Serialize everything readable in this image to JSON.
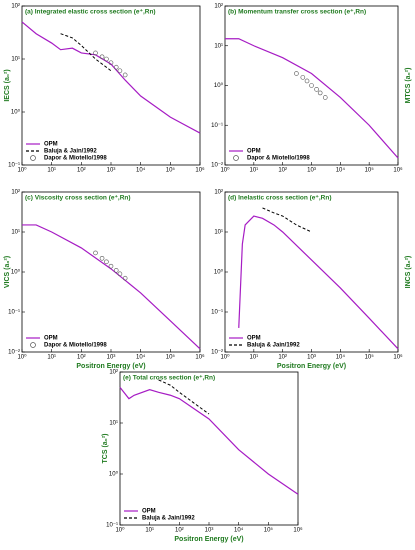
{
  "chart_data": [
    {
      "type": "line",
      "title": "(a) Integrated elastic cross section (e⁺,Rn)",
      "ylabel": "IECS (a₀²)",
      "ylabel_side": "left",
      "log_x": true,
      "log_y": true,
      "legend": "lower left",
      "xlim": [
        1,
        1000000
      ],
      "xticks": [
        {
          "value": 1,
          "label": "10⁰"
        },
        {
          "value": 10,
          "label": "10¹"
        },
        {
          "value": 100,
          "label": "10²"
        },
        {
          "value": 1000,
          "label": "10³"
        },
        {
          "value": 10000,
          "label": "10⁴"
        },
        {
          "value": 100000,
          "label": "10⁵"
        },
        {
          "value": 1000000,
          "label": "10⁶"
        }
      ],
      "ylim": [
        0.1,
        100
      ],
      "yticks": [
        {
          "value": 0.1,
          "label": "10⁻¹"
        },
        {
          "value": 1,
          "label": "10⁰"
        },
        {
          "value": 10,
          "label": "10¹"
        },
        {
          "value": 100,
          "label": "10²"
        }
      ],
      "series": [
        {
          "name": "OPM",
          "style": "line",
          "color": "#a61cc4",
          "x": [
            1,
            3,
            10,
            20,
            50,
            100,
            300,
            1000,
            3000,
            10000,
            100000,
            1000000
          ],
          "values": [
            50,
            30,
            20,
            15,
            16,
            13,
            12,
            8,
            4,
            2,
            0.8,
            0.4
          ]
        },
        {
          "name": "Baluja & Jain/1992",
          "style": "dashed",
          "color": "#000000",
          "x": [
            20,
            50,
            100,
            300,
            1000
          ],
          "values": [
            30,
            25,
            18,
            10,
            6
          ]
        },
        {
          "name": "Dapor & Miotello/1998",
          "style": "markers",
          "color": "#555555",
          "x": [
            300,
            500,
            700,
            1000,
            1500,
            2000,
            3000
          ],
          "values": [
            13,
            11,
            10,
            8.5,
            7,
            6,
            5
          ]
        }
      ]
    },
    {
      "type": "line",
      "title": "(b) Momentum transfer cross section (e⁺,Rn)",
      "ylabel": "MTCS (a₀²)",
      "ylabel_side": "right",
      "log_x": true,
      "log_y": true,
      "legend": "lower left",
      "xlim": [
        1,
        1000000
      ],
      "xticks": [
        {
          "value": 1,
          "label": "10⁰"
        },
        {
          "value": 10,
          "label": "10¹"
        },
        {
          "value": 100,
          "label": "10²"
        },
        {
          "value": 1000,
          "label": "10³"
        },
        {
          "value": 10000,
          "label": "10⁴"
        },
        {
          "value": 100000,
          "label": "10⁵"
        },
        {
          "value": 1000000,
          "label": "10⁶"
        }
      ],
      "ylim": [
        0.01,
        100
      ],
      "yticks": [
        {
          "value": 0.01,
          "label": "10⁻²"
        },
        {
          "value": 0.1,
          "label": "10⁻¹"
        },
        {
          "value": 1,
          "label": "10⁰"
        },
        {
          "value": 10,
          "label": "10¹"
        },
        {
          "value": 100,
          "label": "10²"
        }
      ],
      "series": [
        {
          "name": "OPM",
          "style": "line",
          "color": "#a61cc4",
          "x": [
            1,
            3,
            10,
            100,
            1000,
            10000,
            100000,
            1000000
          ],
          "values": [
            15,
            15,
            10,
            5,
            2,
            0.5,
            0.1,
            0.015
          ]
        },
        {
          "name": "Dapor & Miotello/1998",
          "style": "markers",
          "color": "#555555",
          "x": [
            300,
            500,
            700,
            1000,
            1500,
            2000,
            3000
          ],
          "values": [
            2.0,
            1.6,
            1.3,
            1.0,
            0.8,
            0.65,
            0.5
          ]
        }
      ]
    },
    {
      "type": "line",
      "title": "(c) Viscosity cross section (e⁺,Rn)",
      "ylabel": "VICS (a₀²)",
      "ylabel_side": "left",
      "xlabel": "Positron Energy (eV)",
      "log_x": true,
      "log_y": true,
      "legend": "lower left",
      "xlim": [
        1,
        1000000
      ],
      "xticks": [
        {
          "value": 1,
          "label": "10⁰"
        },
        {
          "value": 10,
          "label": "10¹"
        },
        {
          "value": 100,
          "label": "10²"
        },
        {
          "value": 1000,
          "label": "10³"
        },
        {
          "value": 10000,
          "label": "10⁴"
        },
        {
          "value": 100000,
          "label": "10⁵"
        },
        {
          "value": 1000000,
          "label": "10⁶"
        }
      ],
      "ylim": [
        0.01,
        100
      ],
      "yticks": [
        {
          "value": 0.01,
          "label": "10⁻²"
        },
        {
          "value": 0.1,
          "label": "10⁻¹"
        },
        {
          "value": 1,
          "label": "10⁰"
        },
        {
          "value": 10,
          "label": "10¹"
        },
        {
          "value": 100,
          "label": "10²"
        }
      ],
      "series": [
        {
          "name": "OPM",
          "style": "line",
          "color": "#a61cc4",
          "x": [
            1,
            3,
            10,
            100,
            1000,
            10000,
            100000,
            1000000
          ],
          "values": [
            15,
            15,
            10,
            4,
            1.2,
            0.3,
            0.06,
            0.012
          ]
        },
        {
          "name": "Dapor & Miotello/1998",
          "style": "markers",
          "color": "#555555",
          "x": [
            300,
            500,
            700,
            1000,
            1500,
            2000,
            3000
          ],
          "values": [
            3,
            2.2,
            1.8,
            1.4,
            1.1,
            0.9,
            0.7
          ]
        }
      ]
    },
    {
      "type": "line",
      "title": "(d) Inelastic cross section (e⁺,Rn)",
      "ylabel": "INCS (a₀²)",
      "ylabel_side": "right",
      "xlabel": "Positron Energy (eV)",
      "log_x": true,
      "log_y": true,
      "legend": "lower left",
      "xlim": [
        1,
        1000000
      ],
      "xticks": [
        {
          "value": 1,
          "label": "10⁰"
        },
        {
          "value": 10,
          "label": "10¹"
        },
        {
          "value": 100,
          "label": "10²"
        },
        {
          "value": 1000,
          "label": "10³"
        },
        {
          "value": 10000,
          "label": "10⁴"
        },
        {
          "value": 100000,
          "label": "10⁵"
        },
        {
          "value": 1000000,
          "label": "10⁶"
        }
      ],
      "ylim": [
        0.01,
        100
      ],
      "yticks": [
        {
          "value": 0.01,
          "label": "10⁻²"
        },
        {
          "value": 0.1,
          "label": "10⁻¹"
        },
        {
          "value": 1,
          "label": "10⁰"
        },
        {
          "value": 10,
          "label": "10¹"
        },
        {
          "value": 100,
          "label": "10²"
        }
      ],
      "series": [
        {
          "name": "OPM",
          "style": "line",
          "color": "#a61cc4",
          "x": [
            3,
            4,
            5,
            10,
            20,
            50,
            100,
            1000,
            10000,
            100000,
            1000000
          ],
          "values": [
            0.04,
            5,
            15,
            25,
            22,
            15,
            10,
            2,
            0.4,
            0.07,
            0.012
          ]
        },
        {
          "name": "Baluja & Jain/1992",
          "style": "dashed",
          "color": "#000000",
          "x": [
            20,
            50,
            100,
            300,
            1000
          ],
          "values": [
            40,
            30,
            25,
            15,
            10
          ]
        }
      ]
    },
    {
      "type": "line",
      "title": "(e) Total cross section (e⁺,Rn)",
      "ylabel": "TCS (a₀²)",
      "ylabel_side": "left",
      "xlabel": "Positron Energy (eV)",
      "log_x": true,
      "log_y": true,
      "legend": "lower left",
      "xlim": [
        1,
        1000000
      ],
      "xticks": [
        {
          "value": 1,
          "label": "10⁰"
        },
        {
          "value": 10,
          "label": "10¹"
        },
        {
          "value": 100,
          "label": "10²"
        },
        {
          "value": 1000,
          "label": "10³"
        },
        {
          "value": 10000,
          "label": "10⁴"
        },
        {
          "value": 100000,
          "label": "10⁵"
        },
        {
          "value": 1000000,
          "label": "10⁶"
        }
      ],
      "ylim": [
        0.1,
        100
      ],
      "yticks": [
        {
          "value": 0.1,
          "label": "10⁻¹"
        },
        {
          "value": 1,
          "label": "10⁰"
        },
        {
          "value": 10,
          "label": "10¹"
        },
        {
          "value": 100,
          "label": "10²"
        }
      ],
      "series": [
        {
          "name": "OPM",
          "style": "line",
          "color": "#a61cc4",
          "x": [
            1,
            2,
            3,
            10,
            20,
            50,
            100,
            1000,
            10000,
            100000,
            1000000
          ],
          "values": [
            50,
            30,
            35,
            45,
            40,
            35,
            30,
            12,
            3,
            1,
            0.4
          ]
        },
        {
          "name": "Baluja & Jain/1992",
          "style": "dashed",
          "color": "#000000",
          "x": [
            20,
            50,
            100,
            300,
            1000
          ],
          "values": [
            70,
            55,
            40,
            25,
            15
          ]
        }
      ]
    }
  ]
}
